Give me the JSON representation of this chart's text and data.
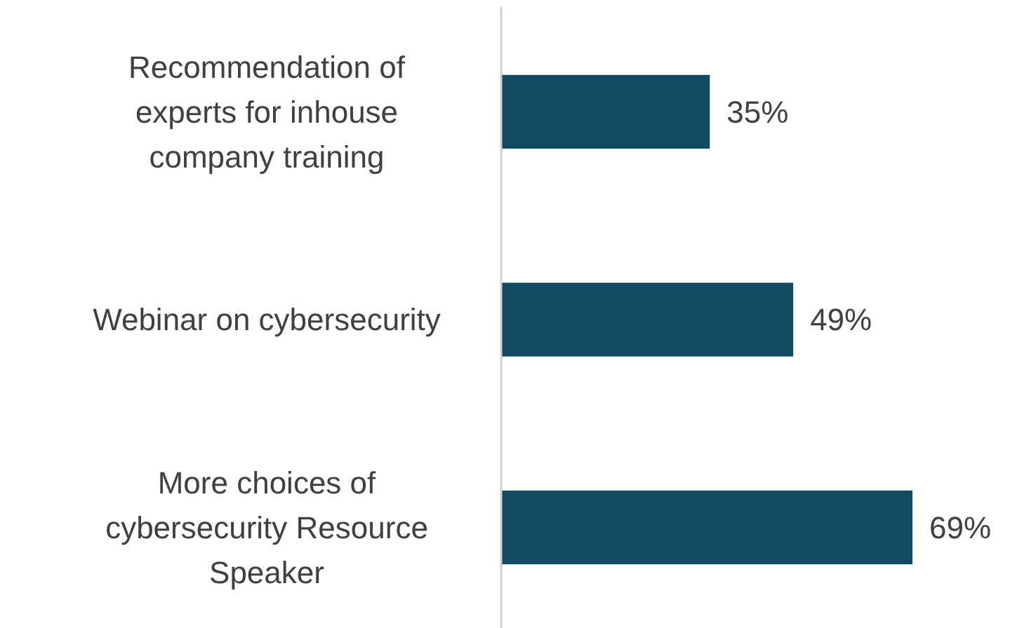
{
  "chart_data": {
    "type": "bar",
    "orientation": "horizontal",
    "categories": [
      "Recommendation of experts for inhouse company training",
      "Webinar on cybersecurity",
      "More choices of cybersecurity Resource Speaker"
    ],
    "values": [
      35,
      49,
      69
    ],
    "color": "#124a63",
    "value_labels": [
      "35%",
      "49%",
      "69%"
    ]
  }
}
